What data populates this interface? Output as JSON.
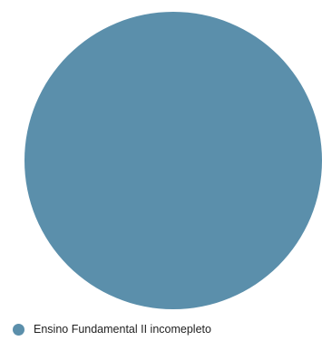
{
  "chart_data": {
    "type": "pie",
    "categories": [
      "Ensino Fundamental II incomepleto"
    ],
    "values": [
      100
    ],
    "colors": [
      "#5B8FAB"
    ],
    "legend": "bottom-left"
  }
}
